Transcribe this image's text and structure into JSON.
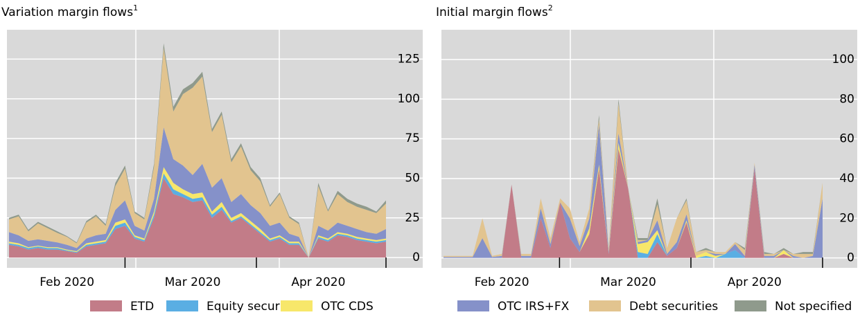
{
  "chart_data": [
    {
      "type": "area",
      "stacked": true,
      "title": "Variation margin flows",
      "title_note": "1",
      "categories": [
        null,
        null,
        null,
        null,
        null,
        null,
        "Feb 2020",
        null,
        null,
        null,
        null,
        null,
        null,
        null,
        null,
        null,
        null,
        null,
        null,
        "Mar 2020",
        null,
        null,
        null,
        null,
        null,
        null,
        null,
        null,
        null,
        null,
        null,
        null,
        "Apr 2020",
        null,
        null,
        null,
        null,
        null,
        null,
        null
      ],
      "ylim": [
        -6.5,
        143.5
      ],
      "yticks": [
        0,
        25,
        50,
        75,
        100,
        125
      ],
      "grid": true,
      "series": [
        {
          "name": "ETD",
          "color": "#c27c88",
          "values": [
            8,
            7,
            5,
            6,
            5,
            5,
            4,
            3,
            7,
            8,
            9,
            18,
            20,
            12,
            10,
            25,
            50,
            40,
            38,
            35,
            36,
            25,
            30,
            22,
            25,
            20,
            15,
            10,
            12,
            8,
            8,
            0,
            12,
            10,
            14,
            13,
            11,
            10,
            9,
            10
          ]
        },
        {
          "name": "Equity securities",
          "color": "#5aaee3",
          "values": [
            1,
            1,
            1,
            1,
            1,
            1,
            0.5,
            0.5,
            1,
            1,
            1,
            2,
            2,
            1,
            1,
            2,
            3,
            3,
            2,
            2,
            2,
            2,
            2,
            1,
            1,
            1,
            1,
            1,
            1,
            1,
            1,
            0,
            1,
            1,
            1,
            1,
            1,
            1,
            1,
            1
          ]
        },
        {
          "name": "OTC CDS",
          "color": "#f7e76a",
          "values": [
            1,
            1,
            0.5,
            0.5,
            0.5,
            0.5,
            0.5,
            0.5,
            1,
            1,
            1,
            2,
            2,
            1,
            1,
            2,
            4,
            4,
            3,
            3,
            3,
            2,
            3,
            2,
            2,
            2,
            2,
            1,
            1,
            1,
            1,
            0,
            1,
            1,
            1,
            1,
            1,
            1,
            1,
            1
          ]
        },
        {
          "name": "OTC IRS+FX",
          "color": "#8591c9",
          "values": [
            6,
            5,
            4,
            4,
            4,
            3,
            3,
            2,
            3,
            4,
            4,
            8,
            12,
            6,
            5,
            8,
            25,
            15,
            15,
            12,
            18,
            15,
            15,
            10,
            12,
            10,
            10,
            8,
            8,
            5,
            3,
            0,
            6,
            5,
            6,
            5,
            5,
            4,
            4,
            6
          ]
        },
        {
          "name": "Debt securities",
          "color": "#e2c48f",
          "values": [
            8,
            12,
            6,
            10,
            8,
            6,
            5,
            3,
            10,
            12,
            5,
            15,
            20,
            8,
            7,
            20,
            50,
            30,
            45,
            55,
            55,
            35,
            40,
            25,
            30,
            22,
            20,
            12,
            18,
            10,
            8,
            0,
            25,
            12,
            18,
            15,
            14,
            14,
            13,
            16
          ]
        },
        {
          "name": "Not specified",
          "color": "#8f9a8c",
          "values": [
            1,
            1,
            1,
            1,
            1,
            1,
            0.5,
            0.5,
            1,
            1,
            1,
            2,
            2,
            1,
            1,
            2,
            3,
            3,
            3,
            3,
            3,
            2,
            2,
            2,
            2,
            2,
            2,
            1,
            1,
            1,
            1,
            0,
            2,
            1,
            2,
            2,
            2,
            2,
            1,
            2
          ]
        }
      ]
    },
    {
      "type": "area",
      "stacked": true,
      "title": "Initial margin flows",
      "title_note": "2",
      "categories": [
        null,
        null,
        null,
        null,
        null,
        null,
        "Feb 2020",
        null,
        null,
        null,
        null,
        null,
        null,
        null,
        null,
        null,
        null,
        null,
        null,
        "Mar 2020",
        null,
        null,
        null,
        null,
        null,
        null,
        null,
        null,
        null,
        null,
        null,
        null,
        "Apr 2020",
        null,
        null,
        null,
        null,
        null,
        null,
        null
      ],
      "ylim": [
        -5,
        115
      ],
      "yticks": [
        0,
        20,
        40,
        60,
        80,
        100
      ],
      "grid": true,
      "series": [
        {
          "name": "ETD",
          "color": "#c27c88",
          "values": [
            0,
            0,
            0,
            0,
            0,
            0,
            0,
            37,
            0,
            0,
            20,
            5,
            28,
            10,
            3,
            12,
            45,
            2,
            55,
            35,
            0,
            0,
            8,
            1,
            5,
            18,
            0,
            0,
            0,
            0,
            0,
            0,
            45,
            0,
            0,
            2,
            0,
            0,
            0,
            0
          ]
        },
        {
          "name": "Equity securities",
          "color": "#5aaee3",
          "values": [
            0,
            0,
            0,
            0,
            0,
            0,
            0,
            0,
            0,
            0,
            0,
            0,
            0,
            0,
            0,
            0,
            0,
            0,
            0,
            0,
            3,
            2,
            4,
            0,
            0,
            0,
            0,
            1,
            0,
            2,
            4,
            0,
            0,
            0,
            0,
            0,
            0,
            0,
            0,
            0
          ]
        },
        {
          "name": "OTC CDS",
          "color": "#f7e76a",
          "values": [
            0,
            0,
            0,
            0,
            0,
            0,
            0,
            0,
            0,
            0,
            0,
            0,
            0,
            0,
            0,
            3,
            2,
            0,
            3,
            0,
            4,
            6,
            2,
            0,
            0,
            1,
            1,
            2,
            1,
            0,
            0,
            0,
            0,
            0,
            0,
            2,
            0,
            0,
            0,
            0
          ]
        },
        {
          "name": "OTC IRS+FX",
          "color": "#8591c9",
          "values": [
            0.5,
            0.5,
            0.5,
            0.5,
            10,
            0.5,
            1,
            0,
            1,
            1,
            5,
            2,
            0,
            10,
            3,
            5,
            20,
            1,
            5,
            0,
            1,
            1,
            5,
            1,
            3,
            3,
            0,
            0,
            1,
            0,
            3,
            1,
            2,
            1,
            1,
            0,
            1,
            0,
            1,
            30
          ]
        },
        {
          "name": "Debt securities",
          "color": "#e2c48f",
          "values": [
            0.5,
            0.5,
            0.5,
            0.5,
            10,
            0.5,
            1,
            0,
            1,
            1,
            5,
            3,
            2,
            5,
            2,
            5,
            3,
            2,
            15,
            0,
            1,
            0,
            8,
            3,
            12,
            7,
            2,
            1,
            1,
            1,
            1,
            3,
            1,
            1,
            1,
            0,
            1,
            2,
            1,
            8
          ]
        },
        {
          "name": "Not specified",
          "color": "#8f9a8c",
          "values": [
            0,
            0,
            0,
            0,
            0,
            0,
            0,
            0,
            0,
            0,
            0,
            0,
            0,
            0,
            0,
            0,
            2,
            0,
            2,
            0,
            1,
            1,
            3,
            0,
            0,
            1,
            0,
            1,
            0,
            0,
            0,
            1,
            0,
            1,
            0,
            1,
            0,
            1,
            1,
            0
          ]
        }
      ]
    }
  ]
}
